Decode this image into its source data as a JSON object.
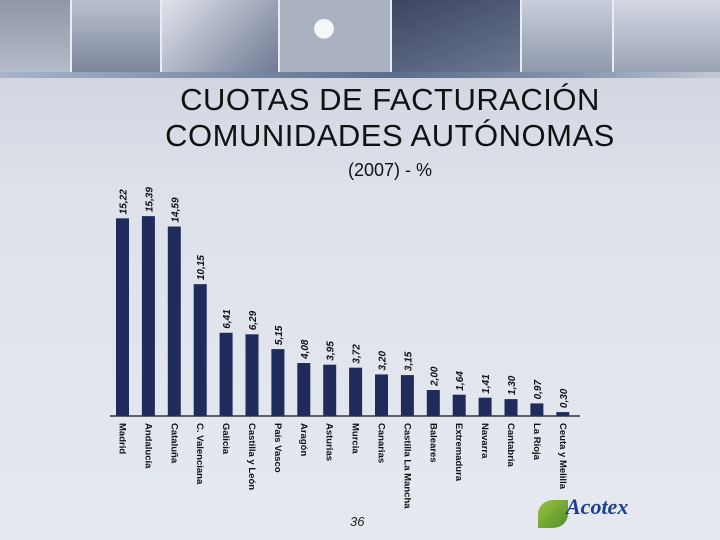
{
  "header": {
    "title_line_1": "CUOTAS DE FACTURACIÓN",
    "title_line_2": "COMUNIDADES AUTÓNOMAS",
    "subtitle": "(2007) - %"
  },
  "footer": {
    "page_number": "36",
    "logo_text": "Acotex"
  },
  "colors": {
    "bar": "#1f2b5b",
    "axis": "#333333"
  },
  "chart_data": {
    "type": "bar",
    "title": "CUOTAS DE FACTURACIÓN COMUNIDADES AUTÓNOMAS",
    "subtitle": "(2007) - %",
    "categories": [
      "Madrid",
      "Andalucía",
      "Cataluña",
      "C. Valenciana",
      "Galicia",
      "Castilla y León",
      "País Vasco",
      "Aragón",
      "Asturias",
      "Murcia",
      "Canarias",
      "Castilla La Mancha",
      "Baleares",
      "Extremadura",
      "Navarra",
      "Cantabria",
      "La Rioja",
      "Ceuta y Melilla"
    ],
    "values": [
      15.22,
      15.39,
      14.59,
      10.15,
      6.41,
      6.29,
      5.15,
      4.08,
      3.95,
      3.72,
      3.2,
      3.15,
      2.0,
      1.64,
      1.41,
      1.3,
      0.97,
      0.3
    ],
    "value_labels": [
      "15,22",
      "15,39",
      "14,59",
      "10,15",
      "6,41",
      "6,29",
      "5,15",
      "4,08",
      "3,95",
      "3,72",
      "3,20",
      "3,15",
      "2,00",
      "1,64",
      "1,41",
      "1,30",
      "0,97",
      "0,30"
    ],
    "xlabel": "",
    "ylabel": "%",
    "ylim": [
      0,
      16
    ]
  }
}
